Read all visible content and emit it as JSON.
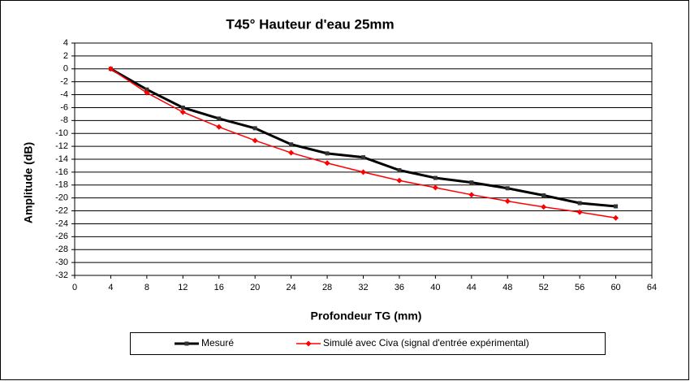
{
  "chart_data": {
    "type": "line",
    "title": "T45°  Hauteur d'eau 25mm",
    "x_label": "Profondeur TG (mm)",
    "y_label": "Amplitude (dB)",
    "x": [
      4,
      8,
      12,
      16,
      20,
      24,
      28,
      32,
      36,
      40,
      44,
      48,
      52,
      56,
      60
    ],
    "series": [
      {
        "name": "Mesuré",
        "color": "#000000",
        "values": [
          0,
          -3.2,
          -6,
          -7.7,
          -9.2,
          -11.7,
          -13.1,
          -13.7,
          -15.7,
          -16.9,
          -17.6,
          -18.5,
          -19.6,
          -20.8,
          -21.3
        ]
      },
      {
        "name": "Simulé avec Civa (signal d'entrée expérimental)",
        "color": "#ff0000",
        "values": [
          0,
          -3.7,
          -6.7,
          -9,
          -11.1,
          -13,
          -14.6,
          -16,
          -17.3,
          -18.4,
          -19.5,
          -20.5,
          -21.4,
          -22.2,
          -23.1
        ]
      }
    ],
    "xlim": [
      0,
      64
    ],
    "xticks": [
      0,
      4,
      8,
      12,
      16,
      20,
      24,
      28,
      32,
      36,
      40,
      44,
      48,
      52,
      56,
      60,
      64
    ],
    "ylim": [
      -32,
      4
    ],
    "yticks": [
      4,
      2,
      0,
      -2,
      -4,
      -6,
      -8,
      -10,
      -12,
      -14,
      -16,
      -18,
      -20,
      -22,
      -24,
      -26,
      -28,
      -30,
      -32
    ],
    "grid": true
  }
}
